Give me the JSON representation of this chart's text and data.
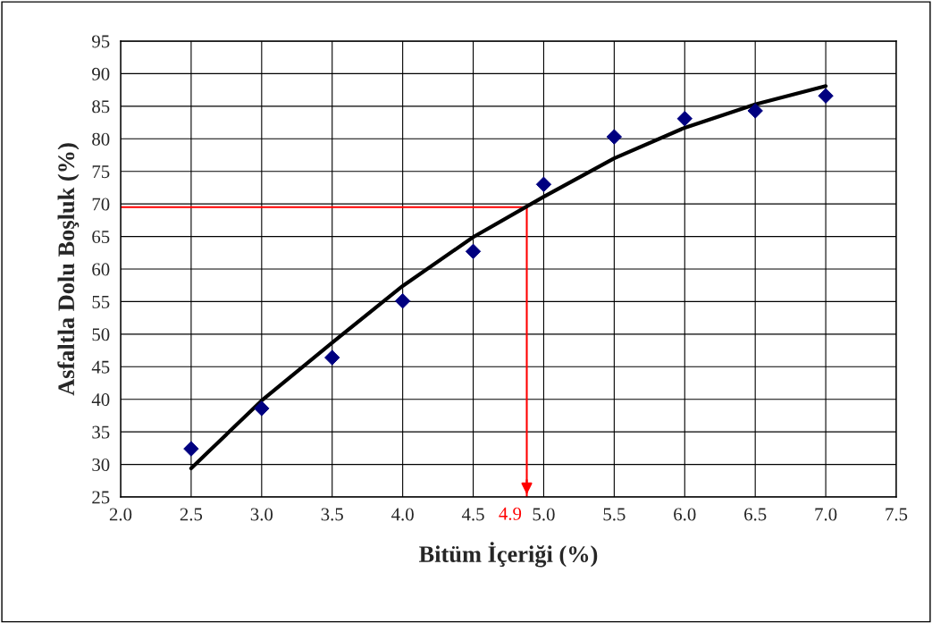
{
  "chart_data": {
    "type": "scatter",
    "xlabel": "Bitüm İçeriği (%)",
    "ylabel": "Asfaltla Dolu Boşluk (%)",
    "xlim": [
      2.0,
      7.5
    ],
    "xticks": [
      {
        "value": 2.0,
        "label": "2.0"
      },
      {
        "value": 2.5,
        "label": "2.5"
      },
      {
        "value": 3.0,
        "label": "3.0"
      },
      {
        "value": 3.5,
        "label": "3.5"
      },
      {
        "value": 4.0,
        "label": "4.0"
      },
      {
        "value": 4.5,
        "label": "4.5"
      },
      {
        "value": 5.0,
        "label": "5.0"
      },
      {
        "value": 5.5,
        "label": "5.5"
      },
      {
        "value": 6.0,
        "label": "6.0"
      },
      {
        "value": 6.5,
        "label": "6.5"
      },
      {
        "value": 7.0,
        "label": "7.0"
      },
      {
        "value": 7.5,
        "label": "7.5"
      }
    ],
    "ylim": [
      25,
      95
    ],
    "yticks": [
      25,
      30,
      35,
      40,
      45,
      50,
      55,
      60,
      65,
      70,
      75,
      80,
      85,
      90,
      95
    ],
    "grid": true,
    "series": [
      {
        "color": "#000080",
        "marker": "diamond",
        "x": [
          2.5,
          3.0,
          3.5,
          4.0,
          4.5,
          5.0,
          5.5,
          6.0,
          6.5,
          7.0
        ],
        "values": [
          32.4,
          38.6,
          46.4,
          55.1,
          62.7,
          73.0,
          80.3,
          83.1,
          84.3,
          86.6
        ]
      },
      {
        "type": "line",
        "color": "#000000",
        "marker": "none",
        "line_style": "solid",
        "x": [
          2.5,
          3.0,
          3.5,
          4.0,
          4.5,
          5.0,
          5.5,
          6.0,
          6.5,
          7.0
        ],
        "values": [
          29.4,
          39.8,
          48.7,
          57.4,
          64.9,
          71.1,
          77.0,
          81.7,
          85.3,
          88.1
        ]
      }
    ],
    "ref_lines": [
      {
        "axis": "y",
        "value": 69.5,
        "color": "#ff0000"
      },
      {
        "axis": "x",
        "value": 4.88,
        "label": "4.9",
        "color": "#ff0000"
      }
    ]
  }
}
